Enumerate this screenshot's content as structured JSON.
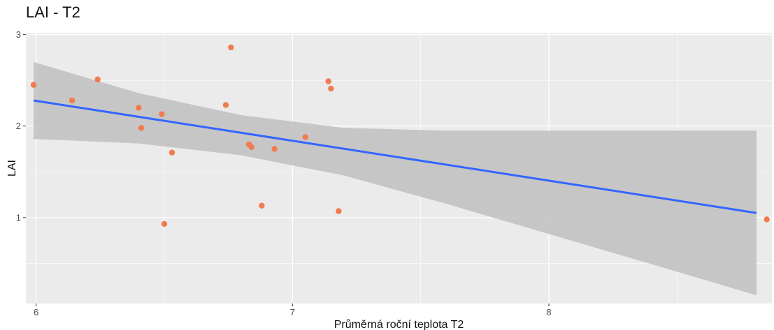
{
  "chart_data": {
    "type": "scatter",
    "title": "LAI - T2",
    "xlabel": "Průměrná roční teplota T2",
    "ylabel": "LAI",
    "xlim": [
      5.96,
      8.87
    ],
    "ylim": [
      0.06,
      3.02
    ],
    "x_ticks": [
      6,
      7,
      8
    ],
    "x_tick_labels": [
      "6",
      "7",
      "8"
    ],
    "y_ticks": [
      1,
      2,
      3
    ],
    "y_tick_labels": [
      "1",
      "2",
      "3"
    ],
    "grid": true,
    "points": [
      {
        "x": 5.99,
        "y": 2.45
      },
      {
        "x": 6.14,
        "y": 2.28
      },
      {
        "x": 6.24,
        "y": 2.51
      },
      {
        "x": 6.4,
        "y": 2.2
      },
      {
        "x": 6.41,
        "y": 1.98
      },
      {
        "x": 6.49,
        "y": 2.13
      },
      {
        "x": 6.5,
        "y": 0.93
      },
      {
        "x": 6.53,
        "y": 1.71
      },
      {
        "x": 6.74,
        "y": 2.23
      },
      {
        "x": 6.76,
        "y": 2.86
      },
      {
        "x": 6.83,
        "y": 1.8
      },
      {
        "x": 6.84,
        "y": 1.77
      },
      {
        "x": 6.88,
        "y": 1.13
      },
      {
        "x": 6.93,
        "y": 1.75
      },
      {
        "x": 7.05,
        "y": 1.88
      },
      {
        "x": 7.14,
        "y": 2.49
      },
      {
        "x": 7.15,
        "y": 2.41
      },
      {
        "x": 7.18,
        "y": 1.07
      },
      {
        "x": 8.85,
        "y": 0.98
      }
    ],
    "fit_line": {
      "x": [
        5.99,
        8.81
      ],
      "y": [
        2.28,
        1.05
      ]
    },
    "confidence_band": {
      "x": [
        5.99,
        6.4,
        6.8,
        7.2,
        7.6,
        8.0,
        8.4,
        8.81
      ],
      "lower": [
        1.86,
        1.81,
        1.68,
        1.46,
        1.15,
        0.82,
        0.49,
        0.15
      ],
      "upper": [
        2.7,
        2.36,
        2.12,
        1.98,
        1.95,
        1.95,
        1.95,
        1.95
      ]
    },
    "colors": {
      "point": "#F07B4F",
      "fit_line": "#3366FF",
      "band": "#BFBFBF",
      "panel": "#EBEBEB",
      "grid": "#FFFFFF"
    }
  }
}
